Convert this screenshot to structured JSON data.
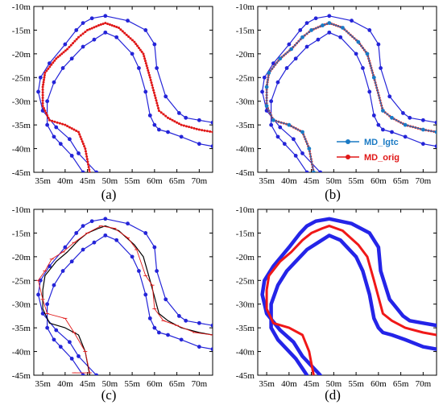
{
  "chart_data": [
    {
      "type": "line",
      "caption": "(a)",
      "xlim": [
        33,
        73
      ],
      "ylim": [
        -45,
        -10
      ],
      "x_ticks": [
        "35m",
        "40m",
        "45m",
        "50m",
        "55m",
        "60m",
        "65m",
        "70m"
      ],
      "y_ticks": [
        "-10m",
        "-15m",
        "-20m",
        "-25m",
        "-30m",
        "-35m",
        "-40m",
        "-45m"
      ],
      "series": [
        {
          "role": "outer-boundary",
          "color": "#2424d8",
          "style": "line-dots",
          "x": [
            47,
            43,
            41,
            38,
            35,
            34,
            34.5,
            36.5,
            40,
            42.5,
            44,
            46,
            49,
            54,
            58,
            60,
            60.5,
            62.5,
            65.5,
            67,
            70,
            73
          ],
          "y": [
            -45,
            -41,
            -38,
            -35.5,
            -32,
            -28,
            -25,
            -22,
            -18,
            -15,
            -13.5,
            -12.5,
            -12,
            -13,
            -15,
            -18,
            -23,
            -29,
            -32.5,
            -33.5,
            -34,
            -34.5
          ]
        },
        {
          "role": "inner-boundary",
          "color": "#2424d8",
          "style": "line-dots",
          "x": [
            44,
            41.5,
            39,
            37.5,
            36,
            36,
            37.5,
            39.5,
            41.5,
            44,
            46.5,
            49,
            51.5,
            55,
            56.5,
            58,
            59,
            60,
            61,
            63,
            66,
            70,
            73
          ],
          "y": [
            -45,
            -41.5,
            -39,
            -37.5,
            -35,
            -30,
            -26,
            -23,
            -21,
            -18.5,
            -17,
            -15.5,
            -16.5,
            -20,
            -23,
            -28,
            -33,
            -35,
            -36,
            -36.5,
            -37.5,
            -39,
            -39.5
          ]
        },
        {
          "role": "center-path",
          "color": "#e01818",
          "style": "dense-dots",
          "x": [
            45.5,
            44.5,
            43,
            40,
            36.5,
            35,
            35,
            35.5,
            38,
            40.5,
            43,
            45,
            47.5,
            49,
            52,
            55.5,
            57.5,
            59,
            61,
            63,
            66,
            70,
            73
          ],
          "y": [
            -45,
            -40,
            -36.5,
            -35,
            -34,
            -31,
            -27,
            -24,
            -21,
            -19,
            -16.5,
            -15,
            -14,
            -13.5,
            -14.5,
            -17.5,
            -20,
            -25,
            -32,
            -33.5,
            -35,
            -36,
            -36.5
          ]
        }
      ]
    },
    {
      "type": "line",
      "caption": "(b)",
      "xlim": [
        33,
        73
      ],
      "ylim": [
        -45,
        -10
      ],
      "x_ticks": [
        "35m",
        "40m",
        "45m",
        "50m",
        "55m",
        "60m",
        "65m",
        "70m"
      ],
      "y_ticks": [
        "-10m",
        "-15m",
        "-20m",
        "-25m",
        "-30m",
        "-35m",
        "-40m",
        "-45m"
      ],
      "legend": [
        {
          "label": "MD_lgtc",
          "color": "#1a7ac4"
        },
        {
          "label": "MD_orig",
          "color": "#e01818"
        }
      ],
      "series": [
        {
          "role": "outer-boundary",
          "color": "#2424d8",
          "style": "line-dots",
          "x": [
            47,
            43,
            41,
            38,
            35,
            34,
            34.5,
            36.5,
            40,
            42.5,
            44,
            46,
            49,
            54,
            58,
            60,
            60.5,
            62.5,
            65.5,
            67,
            70,
            73
          ],
          "y": [
            -45,
            -41,
            -38,
            -35.5,
            -32,
            -28,
            -25,
            -22,
            -18,
            -15,
            -13.5,
            -12.5,
            -12,
            -13,
            -15,
            -18,
            -23,
            -29,
            -32.5,
            -33.5,
            -34,
            -34.5
          ]
        },
        {
          "role": "inner-boundary",
          "color": "#2424d8",
          "style": "line-dots",
          "x": [
            44,
            41.5,
            39,
            37.5,
            36,
            36,
            37.5,
            39.5,
            41.5,
            44,
            46.5,
            49,
            51.5,
            55,
            56.5,
            58,
            59,
            60,
            61,
            63,
            66,
            70,
            73
          ],
          "y": [
            -45,
            -41.5,
            -39,
            -37.5,
            -35,
            -30,
            -26,
            -23,
            -21,
            -18.5,
            -17,
            -15.5,
            -16.5,
            -20,
            -23,
            -28,
            -33,
            -35,
            -36,
            -36.5,
            -37.5,
            -39,
            -39.5
          ]
        },
        {
          "role": "center-path-orig",
          "color": "#e01818",
          "style": "dense-dots",
          "x": [
            45.5,
            44.5,
            43,
            40,
            36.5,
            35,
            35,
            35.5,
            38,
            40.5,
            43,
            45,
            47.5,
            49,
            52,
            55.5,
            57.5,
            59,
            61,
            63,
            66,
            70,
            73
          ],
          "y": [
            -45,
            -40,
            -36.5,
            -35,
            -34,
            -31,
            -27,
            -24,
            -21,
            -19,
            -16.5,
            -15,
            -14,
            -13.5,
            -14.5,
            -17.5,
            -20,
            -25,
            -32,
            -33.5,
            -35,
            -36,
            -36.5
          ]
        },
        {
          "role": "center-path-lgtc",
          "color": "#1a7ac4",
          "style": "line-dots",
          "x": [
            45.5,
            44.5,
            43,
            40,
            36.5,
            35,
            35,
            35.5,
            38,
            40.5,
            43,
            45,
            47.5,
            49,
            52,
            55.5,
            57.5,
            59,
            61,
            63,
            66,
            70,
            73
          ],
          "y": [
            -45,
            -40,
            -36.5,
            -35,
            -34,
            -31,
            -27,
            -24,
            -21,
            -19,
            -16.5,
            -15,
            -14,
            -13.5,
            -14.5,
            -17.5,
            -20,
            -25,
            -32,
            -33.5,
            -35,
            -36,
            -36.5
          ]
        }
      ]
    },
    {
      "type": "line",
      "caption": "(c)",
      "xlim": [
        33,
        73
      ],
      "ylim": [
        -45,
        -10
      ],
      "x_ticks": [
        "35m",
        "40m",
        "45m",
        "50m",
        "55m",
        "60m",
        "65m",
        "70m"
      ],
      "y_ticks": [
        "-10m",
        "-15m",
        "-20m",
        "-25m",
        "-30m",
        "-35m",
        "-40m",
        "-45m"
      ],
      "series": [
        {
          "role": "outer-boundary",
          "color": "#2424d8",
          "style": "line-dots",
          "x": [
            47,
            43,
            41,
            38,
            35,
            34,
            34.5,
            36.5,
            40,
            42.5,
            44,
            46,
            49,
            54,
            58,
            60,
            60.5,
            62.5,
            65.5,
            67,
            70,
            73
          ],
          "y": [
            -45,
            -41,
            -38,
            -35.5,
            -32,
            -28,
            -25,
            -22,
            -18,
            -15,
            -13.5,
            -12.5,
            -12,
            -13,
            -15,
            -18,
            -23,
            -29,
            -32.5,
            -33.5,
            -34,
            -34.5
          ]
        },
        {
          "role": "inner-boundary",
          "color": "#2424d8",
          "style": "line-dots",
          "x": [
            44,
            41.5,
            39,
            37.5,
            36,
            36,
            37.5,
            39.5,
            41.5,
            44,
            46.5,
            49,
            51.5,
            55,
            56.5,
            58,
            59,
            60,
            61,
            63,
            66,
            70,
            73
          ],
          "y": [
            -45,
            -41.5,
            -39,
            -37.5,
            -35,
            -30,
            -26,
            -23,
            -21,
            -18.5,
            -17,
            -15.5,
            -16.5,
            -20,
            -23,
            -28,
            -33,
            -35,
            -36,
            -36.5,
            -37.5,
            -39,
            -39.5
          ]
        },
        {
          "role": "center-path",
          "color": "#000000",
          "style": "line",
          "x": [
            45.5,
            44.5,
            43,
            40,
            36.5,
            35,
            35,
            35.5,
            38,
            40.5,
            43,
            45,
            47.5,
            49,
            52,
            55.5,
            57.5,
            59,
            61,
            63,
            66,
            70,
            73
          ],
          "y": [
            -45,
            -40,
            -36.5,
            -35,
            -34,
            -31,
            -27,
            -24,
            -21,
            -19,
            -16.5,
            -15,
            -14,
            -13.5,
            -14.5,
            -17.5,
            -20,
            -25,
            -32,
            -33.5,
            -35,
            -36,
            -36.5
          ]
        },
        {
          "role": "sample-path",
          "color": "#e01818",
          "style": "thin-line",
          "x": [
            42,
            45.5,
            44.5,
            42,
            40,
            36,
            35,
            34,
            35.5,
            37,
            39.5,
            42,
            45,
            48,
            51,
            54,
            56,
            58,
            59.5,
            60,
            62,
            65,
            69,
            73
          ],
          "y": [
            -44.5,
            -44.5,
            -40,
            -36,
            -33,
            -32,
            -29,
            -25,
            -23,
            -20.5,
            -19,
            -17,
            -15,
            -13.5,
            -14,
            -16,
            -18.5,
            -24,
            -26,
            -31,
            -33.5,
            -34.5,
            -36,
            -36.5
          ]
        }
      ]
    },
    {
      "type": "line",
      "caption": "(d)",
      "xlim": [
        33,
        73
      ],
      "ylim": [
        -45,
        -10
      ],
      "x_ticks": [
        "35m",
        "40m",
        "45m",
        "50m",
        "55m",
        "60m",
        "65m",
        "70m"
      ],
      "y_ticks": [
        "-10m",
        "-15m",
        "-20m",
        "-25m",
        "-30m",
        "-35m",
        "-40m",
        "-45m"
      ],
      "series": [
        {
          "role": "outer-boundary",
          "color": "#2424e8",
          "style": "thick-line",
          "x": [
            47,
            43,
            41,
            38,
            35,
            34,
            34.5,
            36.5,
            40,
            42.5,
            44,
            46,
            49,
            54,
            58,
            60,
            60.5,
            62.5,
            65.5,
            67,
            70,
            73
          ],
          "y": [
            -45,
            -41,
            -38,
            -35.5,
            -32,
            -28,
            -25,
            -22,
            -18,
            -15,
            -13.5,
            -12.5,
            -12,
            -13,
            -15,
            -18,
            -23,
            -29,
            -32.5,
            -33.5,
            -34,
            -34.5
          ]
        },
        {
          "role": "inner-boundary",
          "color": "#2424e8",
          "style": "thick-line",
          "x": [
            44,
            41.5,
            39,
            37.5,
            36,
            36,
            37.5,
            39.5,
            41.5,
            44,
            46.5,
            49,
            51.5,
            55,
            56.5,
            58,
            59,
            60,
            61,
            63,
            66,
            70,
            73
          ],
          "y": [
            -45,
            -41.5,
            -39,
            -37.5,
            -35,
            -30,
            -26,
            -23,
            -21,
            -18.5,
            -17,
            -15.5,
            -16.5,
            -20,
            -23,
            -28,
            -33,
            -35,
            -36,
            -36.5,
            -37.5,
            -39,
            -39.5
          ]
        },
        {
          "role": "center-path",
          "color": "#f01818",
          "style": "medium-line",
          "x": [
            45.5,
            44.5,
            43,
            40,
            36.5,
            35,
            35,
            35.5,
            38,
            40.5,
            43,
            45,
            47.5,
            49,
            52,
            55.5,
            57.5,
            59,
            61,
            63,
            66,
            70,
            73
          ],
          "y": [
            -45,
            -40,
            -36.5,
            -35,
            -34,
            -31,
            -27,
            -24,
            -21,
            -19,
            -16.5,
            -15,
            -14,
            -13.5,
            -14.5,
            -17.5,
            -20,
            -25,
            -32,
            -33.5,
            -35,
            -36,
            -36.5
          ]
        }
      ]
    }
  ]
}
